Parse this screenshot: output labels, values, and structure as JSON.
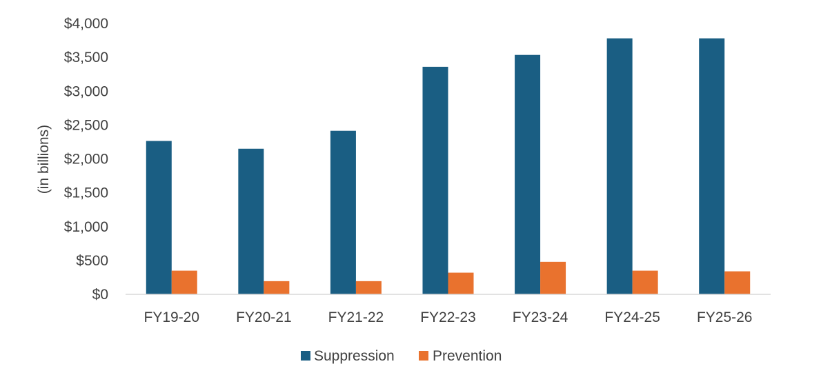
{
  "chart_data": {
    "type": "bar",
    "title": "",
    "xlabel": "",
    "ylabel": "(in billions)",
    "ylim": [
      0,
      4000
    ],
    "ytick_step": 500,
    "ytick_labels": [
      "$0",
      "$500",
      "$1,000",
      "$1,500",
      "$2,000",
      "$2,500",
      "$3,000",
      "$3,500",
      "$4,000"
    ],
    "categories": [
      "FY19-20",
      "FY20-21",
      "FY21-22",
      "FY22-23",
      "FY23-24",
      "FY24-25",
      "FY25-26"
    ],
    "series": [
      {
        "name": "Suppression",
        "color": "#1a5e83",
        "values": [
          2265,
          2150,
          2415,
          3360,
          3535,
          3780,
          3780
        ]
      },
      {
        "name": "Prevention",
        "color": "#e9722e",
        "values": [
          350,
          195,
          195,
          320,
          480,
          350,
          340
        ]
      }
    ],
    "grid": false,
    "legend_position": "bottom"
  }
}
